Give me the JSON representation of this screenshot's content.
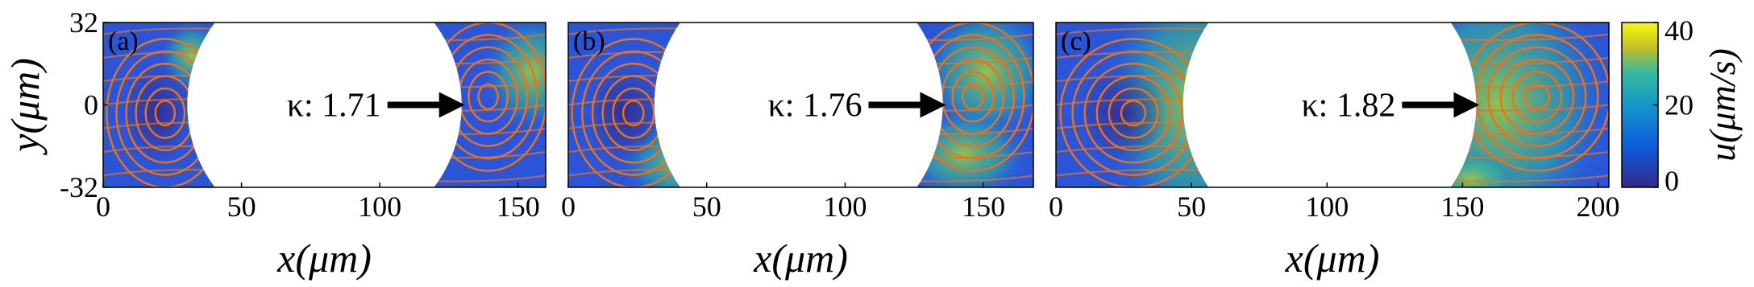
{
  "chart_data": [
    {
      "type": "streamline",
      "panel_label": "(a)",
      "annotation": "κ: 1.71",
      "xlabel": "x(μm)",
      "ylabel": "y(μm)",
      "xlim": [
        0,
        160
      ],
      "xticks": [
        0,
        50,
        100,
        150
      ],
      "ylim": [
        -32,
        32
      ],
      "yticks": [
        32,
        0,
        -32
      ]
    },
    {
      "type": "streamline",
      "panel_label": "(b)",
      "annotation": "κ: 1.76",
      "xlabel": "x(μm)",
      "xlim": [
        0,
        168
      ],
      "xticks": [
        0,
        50,
        100,
        150
      ],
      "ylim": [
        -32,
        32
      ]
    },
    {
      "type": "streamline",
      "panel_label": "(c)",
      "annotation": "κ: 1.82",
      "xlabel": "x(μm)",
      "xlim": [
        0,
        204
      ],
      "xticks": [
        0,
        50,
        100,
        150,
        200
      ],
      "ylim": [
        -32,
        32
      ],
      "colorbar": {
        "label": "u(μm/s)",
        "lim": [
          0,
          40
        ],
        "ticks": [
          0,
          20,
          40
        ]
      }
    }
  ]
}
